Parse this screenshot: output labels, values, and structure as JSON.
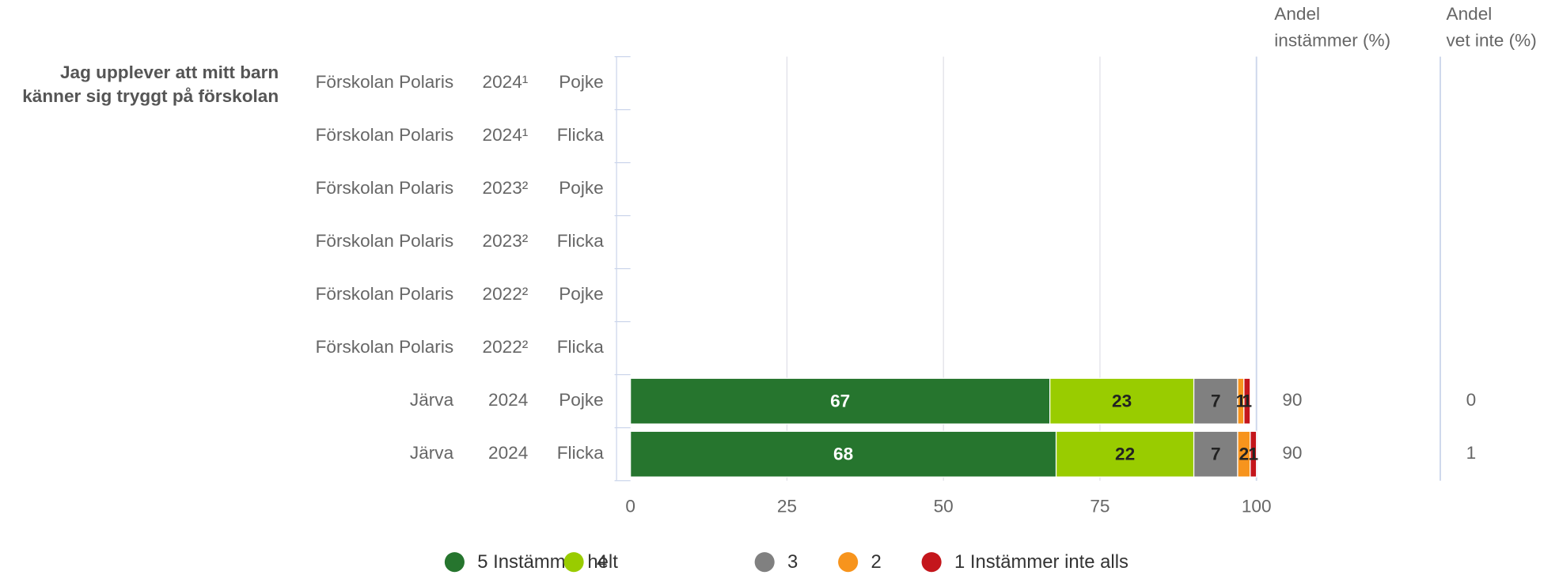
{
  "chart_data": {
    "type": "stacked-bar-horizontal",
    "question": [
      "Jag upplever att mitt barn",
      "känner sig tryggt på förskolan"
    ],
    "categories": [
      [
        "Förskolan Polaris",
        "2024¹",
        "Pojke"
      ],
      [
        "Förskolan Polaris",
        "2024¹",
        "Flicka"
      ],
      [
        "Förskolan Polaris",
        "2023²",
        "Pojke"
      ],
      [
        "Förskolan Polaris",
        "2023²",
        "Flicka"
      ],
      [
        "Förskolan Polaris",
        "2022²",
        "Pojke"
      ],
      [
        "Förskolan Polaris",
        "2022²",
        "Flicka"
      ],
      [
        "Järva",
        "2024",
        "Pojke"
      ],
      [
        "Järva",
        "2024",
        "Flicka"
      ]
    ],
    "series": [
      {
        "name": "5 Instämmer helt",
        "color": "#26752e",
        "values": [
          null,
          null,
          null,
          null,
          null,
          null,
          67,
          68
        ]
      },
      {
        "name": "4",
        "color": "#99cc00",
        "values": [
          null,
          null,
          null,
          null,
          null,
          null,
          23,
          22
        ]
      },
      {
        "name": "3",
        "color": "#808080",
        "values": [
          null,
          null,
          null,
          null,
          null,
          null,
          7,
          7
        ]
      },
      {
        "name": "2",
        "color": "#f7941d",
        "values": [
          null,
          null,
          null,
          null,
          null,
          null,
          1,
          2
        ]
      },
      {
        "name": "1 Instämmer inte alls",
        "color": "#c4161c",
        "values": [
          null,
          null,
          null,
          null,
          null,
          null,
          1,
          1
        ]
      }
    ],
    "columns": [
      {
        "header": [
          "Andel",
          "instämmer (%)"
        ],
        "values": [
          null,
          null,
          null,
          null,
          null,
          null,
          90,
          90
        ]
      },
      {
        "header": [
          "Andel",
          "vet inte (%)"
        ],
        "values": [
          null,
          null,
          null,
          null,
          null,
          null,
          0,
          1
        ]
      }
    ],
    "xlim": [
      0,
      100
    ],
    "xticks": [
      0,
      25,
      50,
      75,
      100
    ],
    "grid": true,
    "legend": "bottom"
  }
}
